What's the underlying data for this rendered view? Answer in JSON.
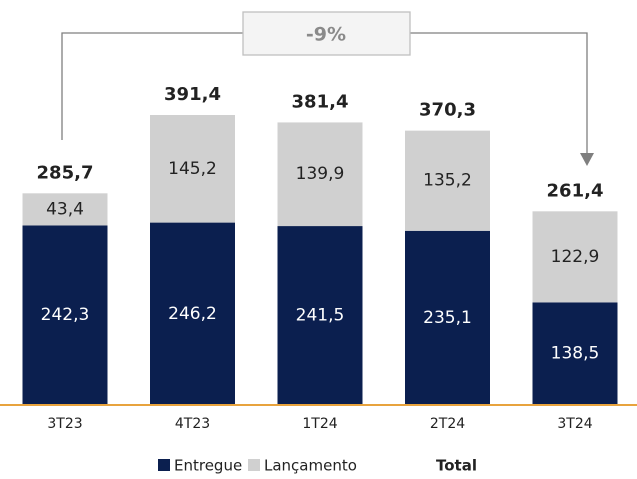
{
  "chart_data": {
    "type": "stacked_bar",
    "categories": [
      "3T23",
      "4T23",
      "1T24",
      "2T24",
      "3T24"
    ],
    "series": [
      {
        "name": "Entregue",
        "color": "#0b1f4f",
        "label_color": "#ffffff",
        "values": [
          242.3,
          246.2,
          241.5,
          235.1,
          138.5
        ],
        "value_labels": [
          "242,3",
          "246,2",
          "241,5",
          "235,1",
          "138,5"
        ]
      },
      {
        "name": "Lançamento",
        "color": "#d0d0d0",
        "label_color": "#222222",
        "values": [
          43.4,
          145.2,
          139.9,
          135.2,
          122.9
        ],
        "value_labels": [
          "43,4",
          "145,2",
          "139,9",
          "135,2",
          "122,9"
        ]
      }
    ],
    "total_name": "Total",
    "totals": [
      285.7,
      391.4,
      381.4,
      370.3,
      261.4
    ],
    "total_labels": [
      "285,7",
      "391,4",
      "381,4",
      "370,3",
      "261,4"
    ],
    "annotation": "-9%",
    "baseline_color": "#e8a33d"
  }
}
